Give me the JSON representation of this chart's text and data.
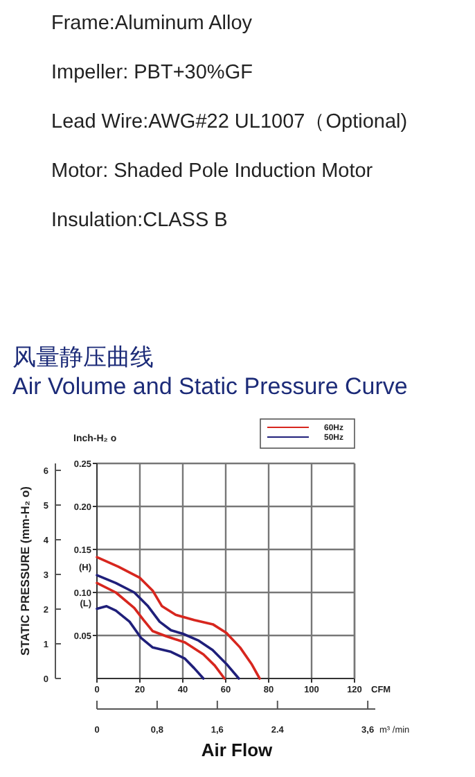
{
  "chart_data": {
    "type": "line",
    "title": "风量静压曲线",
    "subtitle": "Air Volume and Static Pressure Curve",
    "annotations": [
      "Frame:Aluminum Alloy",
      "Impeller: PBT+30%GF",
      "Lead Wire:AWG#22 UL1007（Optional)",
      "Motor: Shaded Pole Induction Motor",
      "Insulation:CLASS B",
      "(H)",
      "(L)",
      "Air  Flow"
    ],
    "xlabel": "CFM",
    "x2label": "m³ /min",
    "ylabel": "STATIC PRESSURE (mm-H₂ o)",
    "y2label": "Inch-H₂ o",
    "xlim": [
      0,
      120
    ],
    "xticks": [
      0,
      20,
      40,
      60,
      80,
      100,
      120
    ],
    "x2lim": [
      0,
      3.7
    ],
    "x2ticks": [
      0,
      {
        "value": 0.8,
        "label": "0,8"
      },
      {
        "value": 1.6,
        "label": "1,6"
      },
      2.4,
      {
        "value": 3.6,
        "label": "3,6"
      }
    ],
    "ylim": [
      0,
      6.2
    ],
    "yticks": [
      0,
      1,
      2,
      3,
      4,
      5,
      6
    ],
    "y2lim": [
      0,
      0.25
    ],
    "y2ticks": [
      {
        "value": 0.05,
        "label": "0.05"
      },
      {
        "value": 0.1,
        "label": "0.10"
      },
      {
        "value": 0.15,
        "label": "0.15"
      },
      {
        "value": 0.2,
        "label": "0.20"
      },
      {
        "value": 0.25,
        "label": "0.25"
      }
    ],
    "grid": true,
    "legend": "top right",
    "marker": "none",
    "line_style": "solid",
    "series": [
      {
        "name": "60Hz",
        "color": "#d7261e",
        "axis": "y2",
        "x": [
          0,
          10,
          20,
          26,
          30.3,
          36.7,
          45.3,
          54,
          60.3,
          66.7,
          72,
          75.8
        ],
        "values": [
          0.141,
          0.13,
          0.117,
          0.102,
          0.084,
          0.074,
          0.068,
          0.063,
          0.053,
          0.036,
          0.017,
          0
        ]
      },
      {
        "name": "50Hz",
        "color": "#1f1f7a",
        "axis": "y2",
        "x": [
          0,
          8.8,
          17.4,
          23.8,
          29.2,
          34.5,
          40,
          47.4,
          53.9,
          60.3,
          66.1
        ],
        "values": [
          0.12,
          0.111,
          0.1,
          0.084,
          0.066,
          0.056,
          0.052,
          0.044,
          0.033,
          0.017,
          0
        ]
      },
      {
        "color": "#d7261e",
        "axis": "y2",
        "x": [
          0,
          8.8,
          17.4,
          21.7,
          26,
          32.4,
          41,
          49.6,
          54.9,
          59.4
        ],
        "values": [
          0.111,
          0.1,
          0.082,
          0.068,
          0.055,
          0.049,
          0.042,
          0.028,
          0.015,
          0
        ]
      },
      {
        "color": "#1f1f7a",
        "axis": "y2",
        "x": [
          0,
          4.5,
          8.8,
          15.2,
          20.6,
          26,
          34.5,
          41,
          45.3,
          49.6
        ],
        "values": [
          0.081,
          0.084,
          0.079,
          0.066,
          0.047,
          0.036,
          0.031,
          0.023,
          0.012,
          0
        ]
      }
    ]
  }
}
